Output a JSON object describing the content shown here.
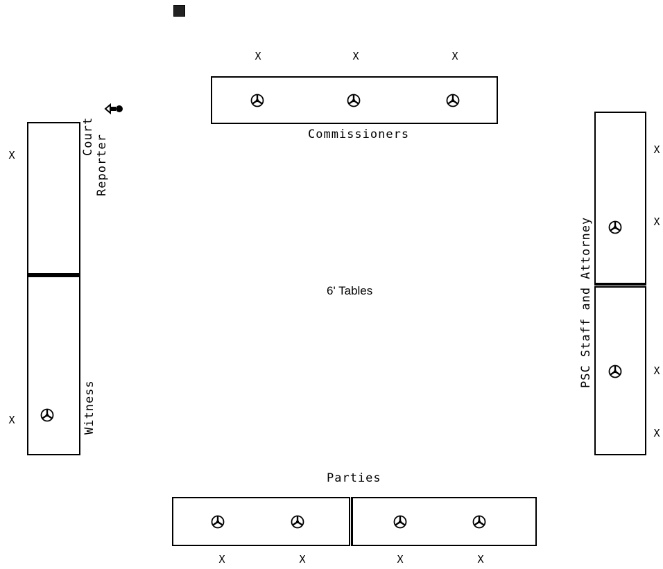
{
  "labels": {
    "commissioners": "Commissioners",
    "court_reporter_line1": "Court",
    "court_reporter_line2": "Reporter",
    "witness": "Witness",
    "psc_staff": "PSC Staff and Attorney",
    "parties": "Parties",
    "tables": "6' Tables"
  },
  "marks": {
    "seat": "X"
  },
  "icons": {
    "microphone": "microphone-icon",
    "camera": "camera-icon",
    "small_square": "square-icon"
  }
}
